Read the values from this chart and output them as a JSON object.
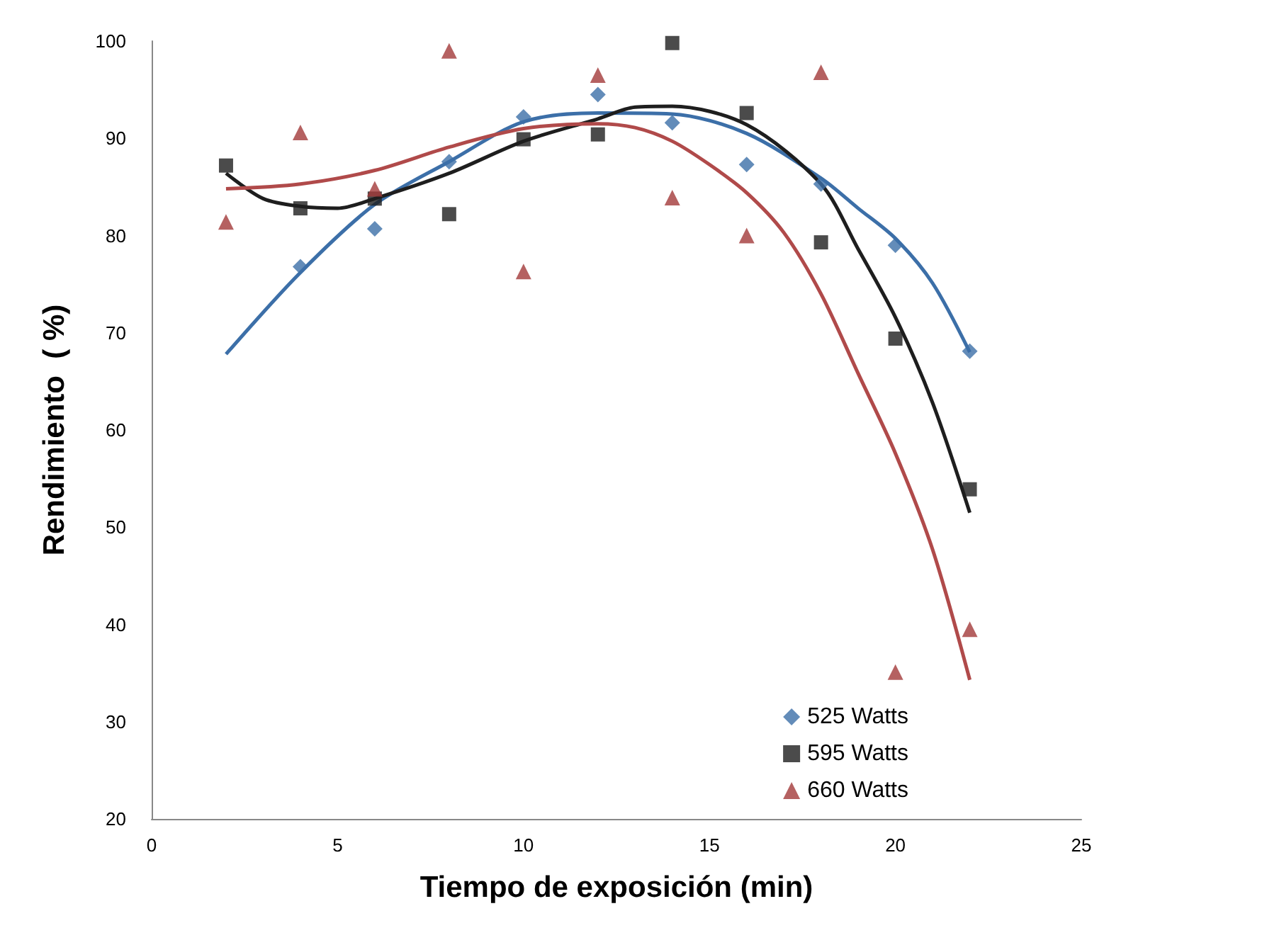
{
  "chart_data": {
    "type": "scatter",
    "xlabel": "Tiempo de exposición (min)",
    "ylabel": "Rendimiento  ( %)",
    "x": [
      2,
      4,
      6,
      8,
      10,
      12,
      14,
      16,
      18,
      20,
      22
    ],
    "xlim": [
      0,
      25
    ],
    "xticks": [
      0,
      5,
      10,
      15,
      20,
      25
    ],
    "ylim": [
      20,
      100
    ],
    "yticks": [
      20,
      30,
      40,
      50,
      60,
      70,
      80,
      90,
      100
    ],
    "grid": false,
    "legend": "bottom right",
    "series": [
      {
        "name": "525 Watts",
        "color": "#3c6fa8",
        "marker": "diamond",
        "x": [
          4,
          6,
          8,
          10,
          12,
          14,
          16,
          18,
          20,
          22
        ],
        "values": [
          76.8,
          80.7,
          87.6,
          92.2,
          94.5,
          91.6,
          87.3,
          85.3,
          79.0,
          68.1
        ]
      },
      {
        "name": "595 Watts",
        "color": "#1e1e1e",
        "marker": "square",
        "values": [
          87.2,
          82.8,
          83.8,
          82.2,
          89.9,
          90.4,
          99.8,
          92.6,
          79.3,
          69.4,
          53.9
        ]
      },
      {
        "name": "660 Watts",
        "color": "#a33a3a",
        "marker": "triangle",
        "values": [
          81.4,
          90.6,
          84.8,
          99.0,
          76.3,
          96.5,
          83.9,
          80.0,
          96.8,
          35.1,
          39.5
        ]
      },
      {
        "type": "line",
        "color": "#3c6fa8",
        "marker": "none",
        "x": [
          2,
          4,
          6,
          8,
          10,
          12,
          14,
          16,
          18,
          19,
          20,
          21,
          22
        ],
        "values": [
          67.8,
          76.2,
          83.2,
          87.6,
          91.7,
          92.6,
          92.5,
          90.5,
          85.9,
          82.8,
          79.7,
          75.1,
          68.0
        ]
      },
      {
        "type": "line",
        "color": "#1e1e1e",
        "marker": "none",
        "x": [
          2,
          3,
          4,
          5,
          6,
          8,
          10,
          12,
          13,
          14,
          16,
          18,
          19,
          20,
          21,
          22
        ],
        "values": [
          86.4,
          83.8,
          83.0,
          82.8,
          83.8,
          86.4,
          89.7,
          92.0,
          93.2,
          93.3,
          91.4,
          85.3,
          78.6,
          71.6,
          62.8,
          51.5
        ]
      },
      {
        "type": "line",
        "color": "#b04a4a",
        "marker": "none",
        "x": [
          2,
          4,
          6,
          8,
          10,
          12,
          13,
          14,
          15,
          16,
          17,
          18,
          19,
          20,
          21,
          22
        ],
        "values": [
          84.8,
          85.3,
          86.7,
          89.1,
          91.0,
          91.5,
          91.1,
          89.7,
          87.3,
          84.4,
          80.3,
          74.0,
          65.8,
          57.6,
          47.7,
          34.3
        ]
      }
    ]
  }
}
